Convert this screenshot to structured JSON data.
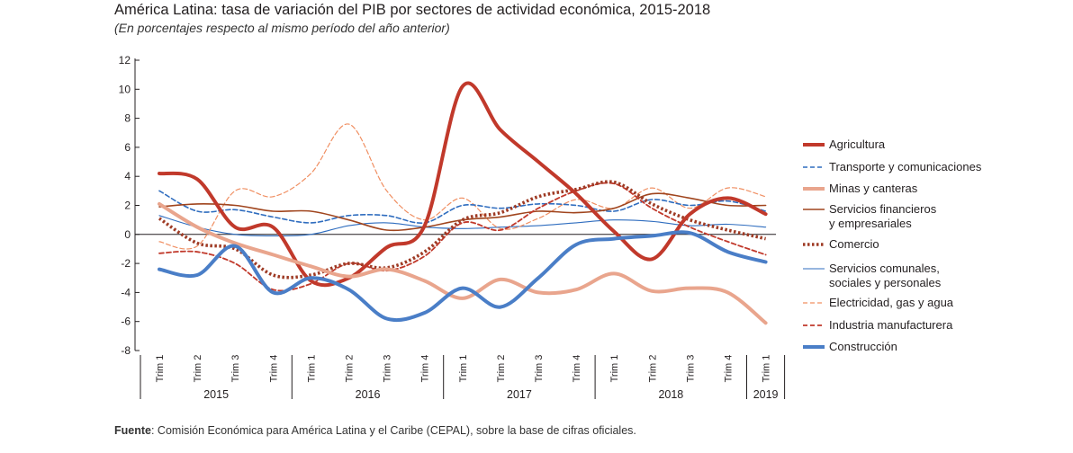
{
  "title": "América Latina: tasa de variación del PIB por sectores de actividad económica, 2015-2018",
  "subtitle": "(En porcentajes respecto al mismo período del año anterior)",
  "source_label": "Fuente",
  "source_text": ": Comisión Económica para América Latina y el Caribe (CEPAL), sobre la base de cifras oficiales.",
  "chart_data": {
    "type": "line",
    "ylim": [
      -8,
      12
    ],
    "yticks": [
      12,
      10,
      8,
      6,
      4,
      2,
      0,
      -2,
      -4,
      -6,
      -8
    ],
    "categories": [
      "Trim 1",
      "Trim 2",
      "Trim 3",
      "Trim 4",
      "Trim 1",
      "Trim 2",
      "Trim 3",
      "Trim 4",
      "Trim 1",
      "Trim 2",
      "Trim 3",
      "Trim 4",
      "Trim 1",
      "Trim 2",
      "Trim 3",
      "Trim 4",
      "Trim 1"
    ],
    "years": [
      {
        "label": "2015",
        "span": 4
      },
      {
        "label": "2016",
        "span": 4
      },
      {
        "label": "2017",
        "span": 4
      },
      {
        "label": "2018",
        "span": 4
      },
      {
        "label": "2019",
        "span": 1
      }
    ],
    "legend_position": "right",
    "series": [
      {
        "name": "Agricultura",
        "color": "#c1392b",
        "style": "solid",
        "width": 4,
        "values": [
          4.2,
          3.8,
          0.5,
          0.5,
          -3.2,
          -3.0,
          -0.9,
          0.6,
          10.2,
          7.2,
          5.0,
          2.8,
          0.2,
          -1.7,
          1.4,
          2.5,
          1.4
        ]
      },
      {
        "name": "Transporte y comunicaciones",
        "color": "#2f6dbf",
        "style": "dashed",
        "width": 1.6,
        "values": [
          3.0,
          1.6,
          1.7,
          1.2,
          0.8,
          1.3,
          1.3,
          0.8,
          2.0,
          1.8,
          2.1,
          2.0,
          1.6,
          2.4,
          2.0,
          2.3,
          1.6
        ]
      },
      {
        "name": "Minas y canteras",
        "color": "#e9a58d",
        "style": "solid",
        "width": 4,
        "values": [
          2.1,
          0.5,
          -0.6,
          -1.4,
          -2.2,
          -2.9,
          -2.4,
          -3.2,
          -4.4,
          -3.1,
          -4.0,
          -3.8,
          -2.7,
          -3.9,
          -3.7,
          -4.0,
          -6.1
        ]
      },
      {
        "name": "Servicios financieros y empresariales",
        "color": "#a0451e",
        "style": "solid",
        "width": 1.6,
        "values": [
          1.9,
          2.1,
          2.0,
          1.6,
          1.6,
          1.0,
          0.3,
          0.5,
          1.0,
          1.2,
          1.6,
          1.5,
          1.8,
          2.8,
          2.5,
          2.0,
          2.0
        ]
      },
      {
        "name": "Comercio",
        "color": "#9e3a24",
        "style": "dotted",
        "width": 3.6,
        "values": [
          1.1,
          -0.6,
          -1.0,
          -2.8,
          -2.8,
          -2.0,
          -2.3,
          -1.2,
          1.0,
          1.5,
          2.6,
          3.1,
          3.6,
          2.1,
          1.0,
          0.3,
          -0.3
        ]
      },
      {
        "name": "Servicios comunales, sociales y personales",
        "color": "#2f6dbf",
        "style": "solid",
        "width": 1.1,
        "values": [
          1.3,
          0.5,
          0.0,
          -0.1,
          0.0,
          0.6,
          0.8,
          0.5,
          0.4,
          0.5,
          0.6,
          0.8,
          1.0,
          0.9,
          0.6,
          0.7,
          0.5
        ]
      },
      {
        "name": "Electricidad, gas y agua",
        "color": "#f08f62",
        "style": "dashed",
        "width": 1.2,
        "values": [
          -0.5,
          -0.8,
          3.0,
          2.6,
          4.2,
          7.6,
          3.0,
          1.0,
          2.5,
          0.4,
          1.1,
          2.4,
          1.8,
          3.2,
          1.8,
          3.2,
          2.6
        ]
      },
      {
        "name": "Industria manufacturera",
        "color": "#c1392b",
        "style": "dashed",
        "width": 1.8,
        "values": [
          -1.3,
          -1.2,
          -2.0,
          -3.8,
          -3.4,
          -2.0,
          -2.5,
          -1.5,
          0.8,
          0.3,
          1.8,
          3.0,
          3.5,
          1.8,
          0.5,
          -0.5,
          -1.4
        ]
      },
      {
        "name": "Construcción",
        "color": "#4a7ec7",
        "style": "solid",
        "width": 4,
        "values": [
          -2.4,
          -2.8,
          -0.8,
          -4.0,
          -3.0,
          -3.8,
          -5.8,
          -5.4,
          -3.7,
          -5.0,
          -3.0,
          -0.7,
          -0.3,
          -0.1,
          0.1,
          -1.2,
          -1.9
        ]
      }
    ]
  }
}
